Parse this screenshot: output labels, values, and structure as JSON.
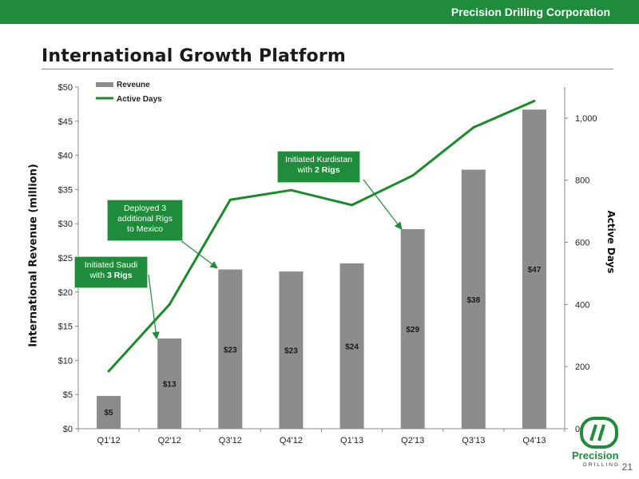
{
  "header": {
    "company": "Precision Drilling Corporation",
    "title": "International Growth Platform",
    "page_number": "21"
  },
  "logo": {
    "text": "Precision",
    "subtext": "DRILLING",
    "mark": "PD"
  },
  "colors": {
    "brand_green": "#1f8c3b",
    "bar_gray": "#8c8c8c",
    "line_green": "#1a8a2a"
  },
  "callouts": [
    {
      "line1": "Initiated Saudi",
      "line2_prefix": "with ",
      "line2_bold": "3 Rigs"
    },
    {
      "line1": "Deployed 3",
      "line2": "additional Rigs",
      "line3": "to Mexico"
    },
    {
      "line1": "Initiated Kurdistan",
      "line2_prefix": "with ",
      "line2_bold": "2 Rigs"
    }
  ],
  "chart_data": {
    "type": "bar",
    "categories": [
      "Q1'12",
      "Q2'12",
      "Q3'12",
      "Q4'12",
      "Q1'13",
      "Q2'13",
      "Q3'13",
      "Q4'13"
    ],
    "series": [
      {
        "name": "Reveune",
        "type": "bar",
        "axis": "left",
        "values": [
          4.8,
          13.2,
          23.3,
          23.0,
          24.2,
          29.2,
          37.9,
          46.7
        ],
        "labels": [
          "$5",
          "$13",
          "$23",
          "$23",
          "$24",
          "$29",
          "$38",
          "$47"
        ]
      },
      {
        "name": "Active Days",
        "type": "line",
        "axis": "right",
        "values": [
          185,
          400,
          737,
          768,
          720,
          815,
          970,
          1055
        ]
      }
    ],
    "ylabel": "International Revenue (million)",
    "ylabel_right": "Active Days",
    "ylim": [
      0,
      50
    ],
    "ylim_right": [
      0,
      1100
    ],
    "yticks": [
      0,
      5,
      10,
      15,
      20,
      25,
      30,
      35,
      40,
      45,
      50
    ],
    "ytick_labels": [
      "$0",
      "$5",
      "$10",
      "$15",
      "$20",
      "$25",
      "$30",
      "$35",
      "$40",
      "$45",
      "$50"
    ],
    "yticks_right": [
      0,
      200,
      400,
      600,
      800,
      1000
    ],
    "ytick_labels_right": [
      "0",
      "200",
      "400",
      "600",
      "800",
      "1,000"
    ],
    "legend": {
      "position": "top-left",
      "entries": [
        "Reveune",
        "Active Days"
      ]
    },
    "grid": false
  }
}
